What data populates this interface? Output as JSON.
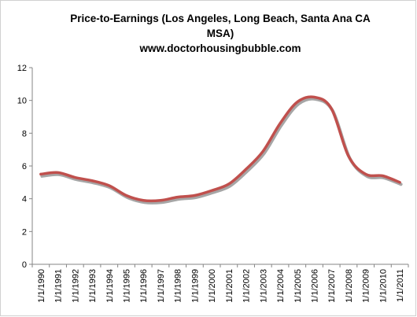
{
  "chart_data": {
    "type": "line",
    "title": "Price-to-Earnings (Los Angeles, Long Beach, Santa Ana CA MSA)",
    "title_line1": "Price-to-Earnings (Los Angeles, Long Beach, Santa Ana CA",
    "title_line2": "MSA)",
    "subtitle": "www.doctorhousingbubble.com",
    "xlabel": "",
    "ylabel": "",
    "ylim": [
      0,
      12
    ],
    "yticks": [
      "0",
      "2",
      "4",
      "6",
      "8",
      "10",
      "12"
    ],
    "grid": false,
    "legend": "none",
    "x": [
      "1/1/1990",
      "1/1/1991",
      "1/1/1992",
      "1/1/1993",
      "1/1/1994",
      "1/1/1995",
      "1/1/1996",
      "1/1/1997",
      "1/1/1998",
      "1/1/1999",
      "1/1/2000",
      "1/1/2001",
      "1/1/2002",
      "1/1/2003",
      "1/1/2004",
      "1/1/2005",
      "1/1/2006",
      "1/1/2007",
      "1/1/2008",
      "1/1/2009",
      "1/1/2010",
      "1/1/2011"
    ],
    "series": [
      {
        "values": [
          5.5,
          5.6,
          5.3,
          5.1,
          4.8,
          4.2,
          3.9,
          3.9,
          4.1,
          4.2,
          4.5,
          4.9,
          5.8,
          6.9,
          8.6,
          9.9,
          10.2,
          9.5,
          6.6,
          5.5,
          5.4,
          5.0
        ],
        "color": "#c0504d"
      }
    ]
  }
}
